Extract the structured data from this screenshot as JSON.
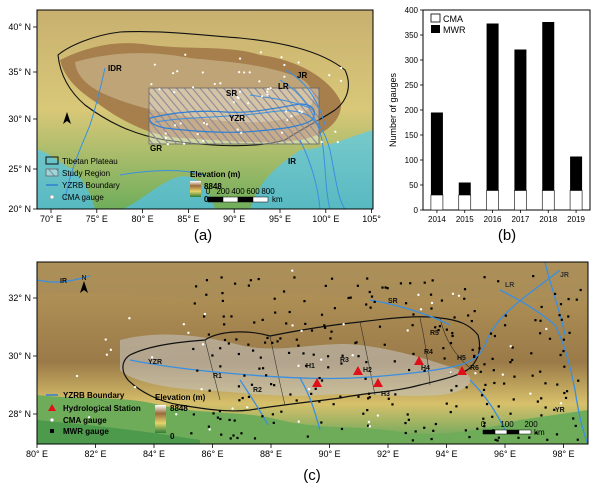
{
  "panel_labels": {
    "a": "(a)",
    "b": "(b)",
    "c": "(c)"
  },
  "colors": {
    "cma_fill": "#ffffff",
    "mwr_fill": "#000000",
    "yzrb_boundary": "#2f7fd4",
    "plateau_outline": "#111111",
    "hydro_station": "#e0101a",
    "river": "#3a8fe0",
    "ocean": "#8fd6d0",
    "lowland": "#5fa85a",
    "highland": "#b79257",
    "peak": "#ffffff"
  },
  "map_a": {
    "lat_ticks": [
      "20° N",
      "25° N",
      "30° N",
      "35° N",
      "40° N"
    ],
    "lon_ticks": [
      "70° E",
      "75° E",
      "80° E",
      "85° E",
      "90° E",
      "95° E",
      "100° E",
      "105°"
    ],
    "place_labels": [
      "IDR",
      "JR",
      "LR",
      "SR",
      "YZR",
      "GR",
      "IR"
    ],
    "legend": {
      "tibetan_plateau": "Tibetan Plateau",
      "study_region": "Study Region",
      "yzrb_boundary": "YZRB Boundary",
      "cma_gauge": "CMA gauge",
      "elevation_title": "Elevation (m)",
      "elev_max": "8848",
      "elev_min": "0"
    },
    "scale": {
      "ticks": [
        "0",
        "200",
        "400",
        "600",
        "800"
      ],
      "unit": "km"
    }
  },
  "map_c": {
    "lat_ticks": [
      "28° N",
      "30° N",
      "32° N"
    ],
    "lon_ticks": [
      "80° E",
      "82° E",
      "84° E",
      "86° E",
      "88° E",
      "90° E",
      "92° E",
      "94° E",
      "96° E",
      "98° E"
    ],
    "place_labels": [
      "IR",
      "LR",
      "JR",
      "SR",
      "YZR",
      "R1",
      "R2",
      "R3",
      "R4",
      "R5",
      "R6",
      "YR",
      "H1",
      "H2",
      "H3",
      "H4",
      "H5"
    ],
    "legend": {
      "yzrb_boundary": "YZRB Boundary",
      "hydro_station": "Hydrological Station",
      "cma_gauge": "CMA gauge",
      "mwr_gauge": "MWR gauge",
      "elevation_title": "Elevation (m)",
      "elev_max": "8848",
      "elev_min": "0"
    },
    "scale": {
      "ticks": [
        "0",
        "100",
        "200"
      ],
      "unit": "km"
    }
  },
  "chart_data": {
    "type": "bar",
    "stacked": true,
    "categories": [
      "2014",
      "2015",
      "2016",
      "2017",
      "2018",
      "2019"
    ],
    "series": [
      {
        "name": "CMA",
        "values": [
          30,
          30,
          39,
          39,
          39,
          39
        ]
      },
      {
        "name": "MWR",
        "values": [
          165,
          25,
          334,
          282,
          337,
          68
        ]
      }
    ],
    "totals": [
      195,
      55,
      373,
      321,
      376,
      107
    ],
    "ylabel": "Number of gauges",
    "xlabel": "",
    "ylim": [
      0,
      400
    ],
    "yticks": [
      "0",
      "50",
      "100",
      "150",
      "200",
      "250",
      "300",
      "350",
      "400"
    ],
    "legend_position": "top-left",
    "grid": false
  }
}
